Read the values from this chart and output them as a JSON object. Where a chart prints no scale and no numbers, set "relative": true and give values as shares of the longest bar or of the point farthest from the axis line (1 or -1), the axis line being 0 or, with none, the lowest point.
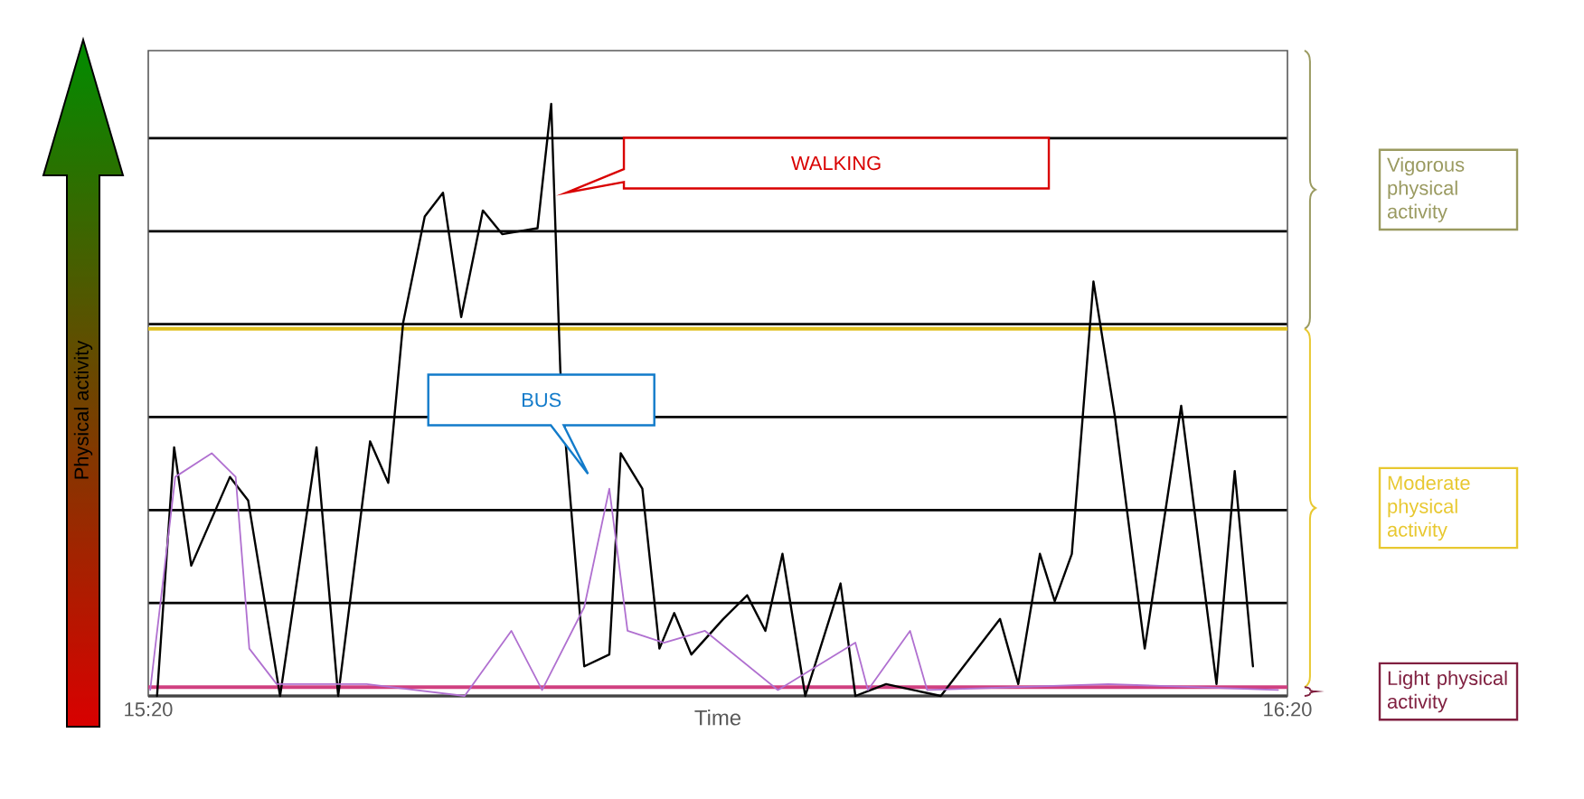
{
  "chart_data": {
    "type": "line",
    "relative": true,
    "xlabel": "Time",
    "ylabel": "Physical activity",
    "xlim": [
      15.3333,
      16.3333
    ],
    "xticks": [
      {
        "value": 15.3333,
        "label": "15:20"
      },
      {
        "value": 16.3333,
        "label": "16:20"
      }
    ],
    "grid": "y",
    "series": [
      {
        "color": "#000000",
        "x": [
          15.341,
          15.356,
          15.371,
          15.405,
          15.421,
          15.449,
          15.481,
          15.5,
          15.528,
          15.544,
          15.557,
          15.576,
          15.592,
          15.608,
          15.627,
          15.644,
          15.675,
          15.687,
          15.695,
          15.7,
          15.716,
          15.738,
          15.748,
          15.767,
          15.782,
          15.795,
          15.81,
          15.838,
          15.859,
          15.875,
          15.89,
          15.91,
          15.941,
          15.954,
          15.981,
          16.029,
          16.081,
          16.097,
          16.116,
          16.129,
          16.144,
          16.163,
          16.182,
          16.208,
          16.24,
          16.271,
          16.287,
          16.303
        ],
        "values": [
          0,
          0.42,
          0.22,
          0.37,
          0.33,
          0,
          0.42,
          0,
          0.43,
          0.36,
          0.63,
          0.81,
          0.85,
          0.64,
          0.82,
          0.78,
          0.79,
          1,
          0.55,
          0.42,
          0.05,
          0.07,
          0.41,
          0.35,
          0.08,
          0.14,
          0.07,
          0.13,
          0.17,
          0.11,
          0.24,
          0,
          0.19,
          0,
          0.02,
          0,
          0.13,
          0.02,
          0.24,
          0.16,
          0.24,
          0.7,
          0.47,
          0.08,
          0.49,
          0.02,
          0.38,
          0.05
        ]
      },
      {
        "color": "#b070d0",
        "x": [
          15.335,
          15.357,
          15.389,
          15.41,
          15.422,
          15.446,
          15.525,
          15.611,
          15.652,
          15.679,
          15.716,
          15.738,
          15.754,
          15.786,
          15.822,
          15.886,
          15.954,
          15.965,
          16.002,
          16.017,
          16.176,
          16.325
        ],
        "values": [
          0.01,
          0.37,
          0.41,
          0.37,
          0.08,
          0.02,
          0.02,
          0,
          0.11,
          0.01,
          0.15,
          0.35,
          0.11,
          0.09,
          0.11,
          0.01,
          0.09,
          0.01,
          0.11,
          0.01,
          0.02,
          0.01
        ]
      }
    ],
    "ref_lines": [
      {
        "axis": "y",
        "value": 0.62,
        "color": "#e0c020"
      },
      {
        "axis": "y",
        "value": 0.015,
        "color": "#d04080"
      }
    ],
    "annotations": [
      "WALKING",
      "BUS",
      "Vigorous physical activity",
      "Moderate physical activity",
      "Light physical activity"
    ]
  }
}
